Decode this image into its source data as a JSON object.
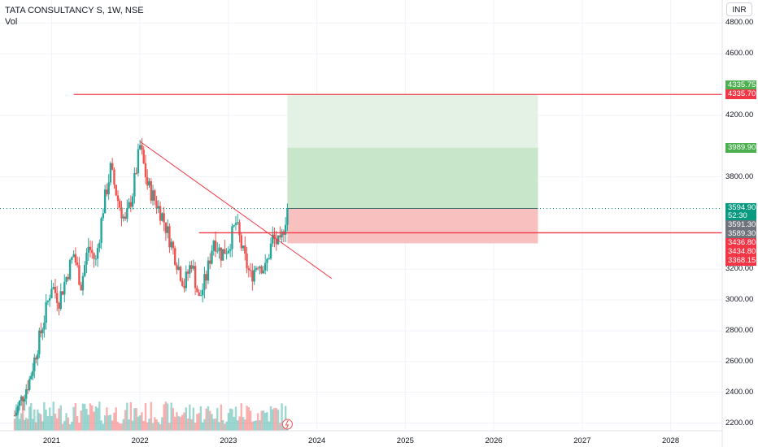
{
  "legend": {
    "symbol": "TATA CONSULTANCY S, 1W, NSE",
    "volume": "Vol"
  },
  "currency_button": "INR",
  "colors": {
    "up": "#26a69a",
    "down": "#ef5350",
    "line": "#f23645",
    "target_zone": "#c8e6c9",
    "target_zone_light": "#e3f2e4",
    "stop_zone": "#f9c0c0",
    "tag_green": "#4caf50",
    "tag_red": "#f23645",
    "tag_gray": "#6e737c",
    "tag_price": "#089981"
  },
  "y_axis_labels": [
    "4800.00",
    "4600.00",
    "4200.00",
    "3800.00",
    "3200.00",
    "3000.00",
    "2800.00",
    "2600.00",
    "2400.00",
    "2200.00"
  ],
  "x_axis_labels": [
    "2021",
    "2022",
    "2023",
    "2024",
    "2025",
    "2026",
    "2027",
    "2028"
  ],
  "price_tags": {
    "target_high": "4335.75",
    "resistance": "4335.70",
    "target": "3989.90",
    "last_price": "3594.90",
    "countdown": "52:30",
    "tag_3591": "3591.30",
    "tag_3589": "3589.30",
    "support": "3436.80",
    "stop": "3434.80",
    "tag_3368": "3368.15"
  },
  "chart_data": {
    "type": "candlestick",
    "symbol": "TATA CONSULTANCY S",
    "interval": "1W",
    "exchange": "NSE",
    "currency": "INR",
    "ylim": [
      2150,
      4950
    ],
    "x_range": [
      "2020-06",
      "2028-08"
    ],
    "anchors": [
      [
        "2020-08",
        2250
      ],
      [
        "2020-10",
        2480
      ],
      [
        "2020-12",
        2880
      ],
      [
        "2021-01",
        3100
      ],
      [
        "2021-02",
        3000
      ],
      [
        "2021-03",
        3150
      ],
      [
        "2021-04",
        3300
      ],
      [
        "2021-05",
        3100
      ],
      [
        "2021-06",
        3350
      ],
      [
        "2021-07",
        3250
      ],
      [
        "2021-08",
        3600
      ],
      [
        "2021-09",
        3850
      ],
      [
        "2021-10",
        3650
      ],
      [
        "2021-11",
        3500
      ],
      [
        "2021-12",
        3700
      ],
      [
        "2022-01",
        4000
      ],
      [
        "2022-02",
        3750
      ],
      [
        "2022-03",
        3650
      ],
      [
        "2022-04",
        3550
      ],
      [
        "2022-05",
        3400
      ],
      [
        "2022-06",
        3250
      ],
      [
        "2022-07",
        3100
      ],
      [
        "2022-08",
        3250
      ],
      [
        "2022-09",
        3000
      ],
      [
        "2022-10",
        3150
      ],
      [
        "2022-11",
        3400
      ],
      [
        "2022-12",
        3300
      ],
      [
        "2023-01",
        3350
      ],
      [
        "2023-02",
        3500
      ],
      [
        "2023-03",
        3300
      ],
      [
        "2023-04",
        3150
      ],
      [
        "2023-05",
        3250
      ],
      [
        "2023-06",
        3200
      ],
      [
        "2023-07",
        3400
      ],
      [
        "2023-08",
        3350
      ],
      [
        "2023-09",
        3595
      ]
    ],
    "horizontal_lines": [
      4335.7,
      3436.8
    ],
    "trendline": {
      "from": [
        "2022-01",
        4030
      ],
      "to": [
        "2024-03",
        3140
      ]
    },
    "long_position": {
      "entry": 3594.9,
      "target": 4335.75,
      "stop": 3368.15,
      "mid_target": 3989.9,
      "from": "2023-09",
      "to": "2026-07"
    }
  }
}
